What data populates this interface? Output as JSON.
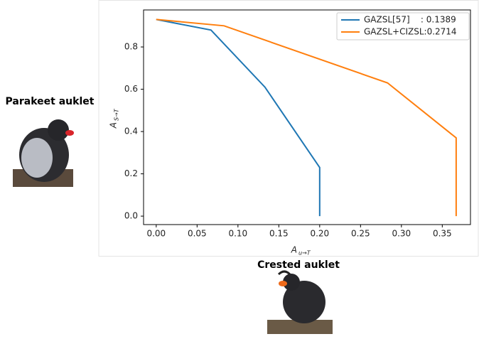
{
  "chart_data": {
    "type": "line",
    "xlabel": {
      "text": "A",
      "subscript": "u→T"
    },
    "ylabel": {
      "text": "A",
      "subscript": "S→T"
    },
    "series": [
      {
        "name": "GAZSL[57]    : 0.1389",
        "color": "#1f77b4",
        "x": [
          0,
          0.067,
          0.133,
          0.2,
          0.2
        ],
        "values": [
          0.93,
          0.88,
          0.61,
          0.23,
          0
        ]
      },
      {
        "name": "GAZSL+CIZSL:0.2714",
        "color": "#ff7f0e",
        "x": [
          0,
          0.083,
          0.283,
          0.367,
          0.367
        ],
        "values": [
          0.93,
          0.9,
          0.63,
          0.37,
          0
        ]
      }
    ],
    "xlim": [
      -0.0155,
      0.3845
    ],
    "ylim": [
      -0.04,
      0.975
    ],
    "xticks": [
      {
        "value": 0,
        "label": "0.00"
      },
      {
        "value": 0.05,
        "label": "0.05"
      },
      {
        "value": 0.1,
        "label": "0.10"
      },
      {
        "value": 0.15,
        "label": "0.15"
      },
      {
        "value": 0.2,
        "label": "0.20"
      },
      {
        "value": 0.25,
        "label": "0.25"
      },
      {
        "value": 0.3,
        "label": "0.30"
      },
      {
        "value": 0.35,
        "label": "0.35"
      }
    ],
    "yticks": [
      {
        "value": 0,
        "label": "0.0"
      },
      {
        "value": 0.2,
        "label": "0.2"
      },
      {
        "value": 0.4,
        "label": "0.4"
      },
      {
        "value": 0.6,
        "label": "0.6"
      },
      {
        "value": 0.8,
        "label": "0.8"
      }
    ],
    "legend": "upper right",
    "annotations": [
      "Parakeet auklet",
      "Crested auklet"
    ]
  }
}
